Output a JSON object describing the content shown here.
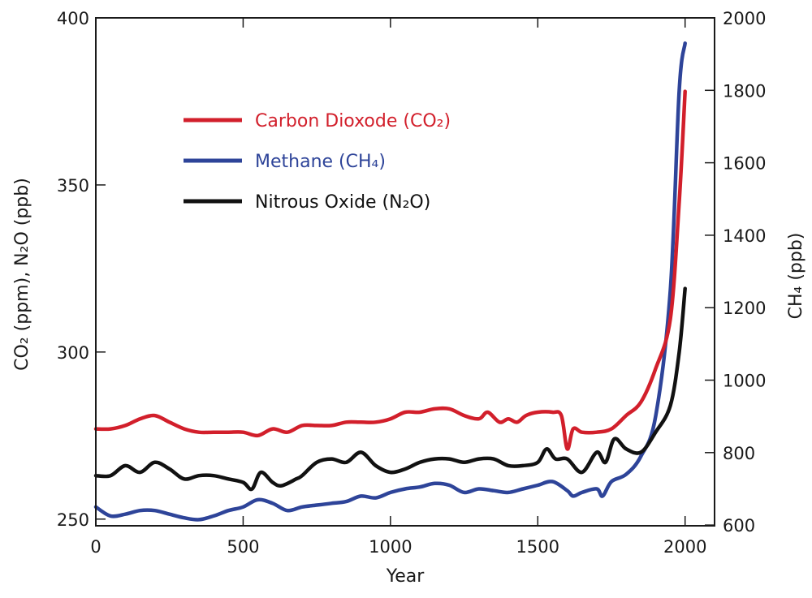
{
  "chart_data": {
    "type": "line",
    "xlabel": "Year",
    "ylabel_left": "CO₂ (ppm), N₂O (ppb)",
    "ylabel_right": "CH₄ (ppb)",
    "xlim": [
      0,
      2100
    ],
    "ylim_left": [
      248,
      400
    ],
    "ylim_right": [
      598,
      2000
    ],
    "x_ticks": [
      0,
      500,
      1000,
      1500,
      2000
    ],
    "y_ticks_left": [
      250,
      300,
      350,
      400
    ],
    "y_ticks_right": [
      600,
      800,
      1000,
      1200,
      1400,
      1600,
      1800,
      2000
    ],
    "grid": false,
    "legend_position": "top-left",
    "series": [
      {
        "name": "Carbon Dioxode (CO₂)",
        "axis": "left",
        "color": "#d21f2b",
        "x": [
          0,
          50,
          100,
          150,
          200,
          250,
          300,
          350,
          400,
          450,
          500,
          550,
          600,
          650,
          700,
          750,
          800,
          850,
          900,
          950,
          1000,
          1050,
          1100,
          1150,
          1200,
          1250,
          1300,
          1330,
          1370,
          1400,
          1430,
          1460,
          1500,
          1550,
          1580,
          1600,
          1620,
          1650,
          1700,
          1750,
          1800,
          1850,
          1900,
          1950,
          1980,
          2000
        ],
        "values": [
          277,
          277,
          278,
          280,
          281,
          279,
          277,
          276,
          276,
          276,
          276,
          275,
          277,
          276,
          278,
          278,
          278,
          279,
          279,
          279,
          280,
          282,
          282,
          283,
          283,
          281,
          280,
          282,
          279,
          280,
          279,
          281,
          282,
          282,
          281,
          271,
          277,
          276,
          276,
          277,
          281,
          285,
          295,
          310,
          345,
          378
        ]
      },
      {
        "name": "Methane (CH₄)",
        "axis": "right",
        "color": "#2e4499",
        "x": [
          0,
          50,
          100,
          150,
          200,
          250,
          300,
          350,
          400,
          450,
          500,
          550,
          600,
          650,
          700,
          750,
          800,
          850,
          900,
          950,
          1000,
          1050,
          1100,
          1150,
          1200,
          1250,
          1300,
          1350,
          1400,
          1450,
          1500,
          1550,
          1600,
          1620,
          1650,
          1700,
          1720,
          1750,
          1800,
          1850,
          1900,
          1950,
          1980,
          2000
        ],
        "values": [
          650,
          625,
          630,
          640,
          640,
          630,
          620,
          615,
          625,
          640,
          650,
          670,
          660,
          640,
          650,
          655,
          660,
          665,
          680,
          675,
          690,
          700,
          705,
          715,
          710,
          690,
          700,
          695,
          690,
          700,
          710,
          720,
          695,
          680,
          690,
          700,
          680,
          720,
          740,
          790,
          900,
          1250,
          1800,
          1930
        ]
      },
      {
        "name": "Nitrous Oxide (N₂O)",
        "axis": "left",
        "color": "#111111",
        "x": [
          0,
          50,
          100,
          150,
          200,
          250,
          300,
          350,
          400,
          450,
          500,
          530,
          560,
          600,
          630,
          680,
          700,
          750,
          800,
          850,
          900,
          950,
          1000,
          1050,
          1100,
          1150,
          1200,
          1250,
          1300,
          1350,
          1400,
          1450,
          1500,
          1530,
          1560,
          1600,
          1650,
          1700,
          1730,
          1760,
          1800,
          1850,
          1900,
          1950,
          1980,
          2000
        ],
        "values": [
          263,
          263,
          266,
          264,
          267,
          265,
          262,
          263,
          263,
          262,
          261,
          259,
          264,
          261,
          260,
          262,
          263,
          267,
          268,
          267,
          270,
          266,
          264,
          265,
          267,
          268,
          268,
          267,
          268,
          268,
          266,
          266,
          267,
          271,
          268,
          268,
          264,
          270,
          267,
          274,
          271,
          270,
          276,
          284,
          300,
          319
        ]
      }
    ]
  }
}
